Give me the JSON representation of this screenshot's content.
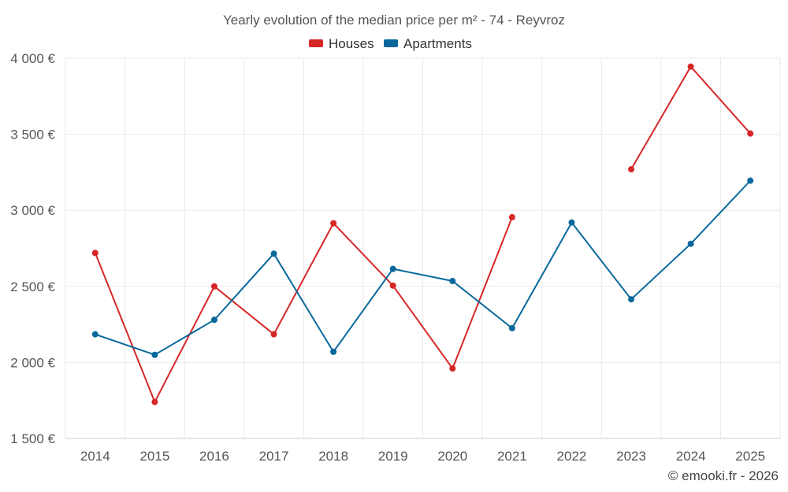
{
  "chart_data": {
    "type": "line",
    "title": "Yearly evolution of the median price per m² - 74 - Reyvroz",
    "categories": [
      "2014",
      "2015",
      "2016",
      "2017",
      "2018",
      "2019",
      "2020",
      "2021",
      "2022",
      "2023",
      "2024",
      "2025"
    ],
    "series": [
      {
        "name": "Houses",
        "color": "#d62728",
        "values": [
          2720,
          1740,
          2500,
          2185,
          2915,
          2505,
          1960,
          2955,
          null,
          3270,
          3945,
          3505
        ]
      },
      {
        "name": "Apartments",
        "color": "#08689c",
        "values": [
          2185,
          2050,
          2280,
          2715,
          2070,
          2615,
          2535,
          2225,
          2920,
          2415,
          2780,
          3195
        ]
      }
    ],
    "y_ticks": [
      "1 500 €",
      "2 000 €",
      "2 500 €",
      "3 000 €",
      "3 500 €",
      "4 000 €"
    ],
    "y_tick_values": [
      1500,
      2000,
      2500,
      3000,
      3500,
      4000
    ],
    "ylim": [
      1500,
      4000
    ],
    "xlabel": "",
    "ylabel": "",
    "legend_position": "top-center",
    "grid": true
  },
  "credit": "© emooki.fr - 2026"
}
